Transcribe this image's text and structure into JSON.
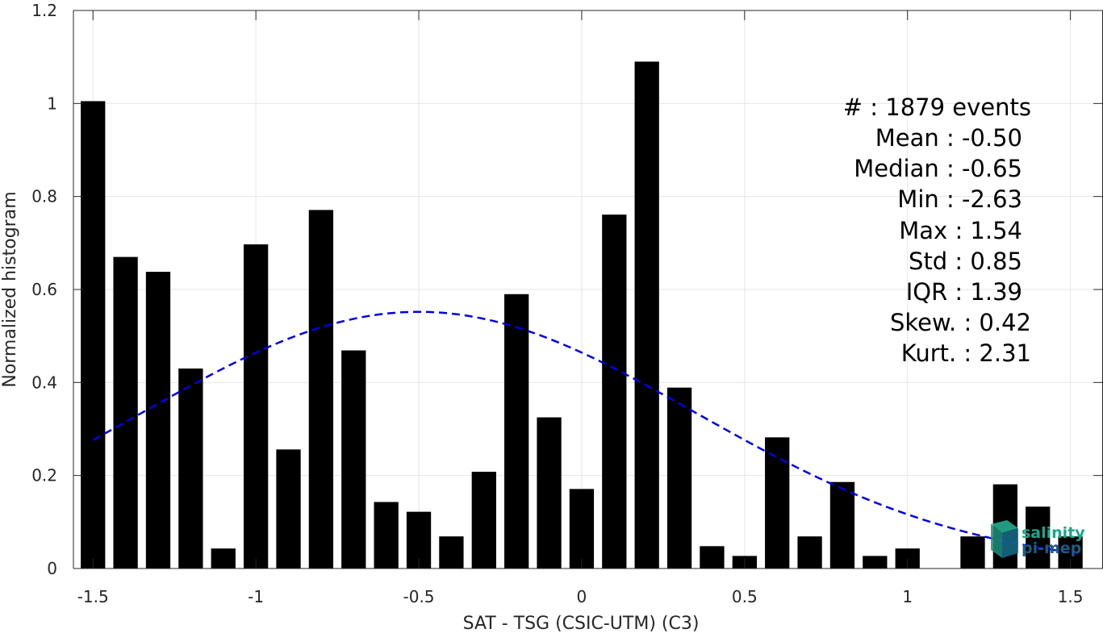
{
  "chart_data": {
    "type": "bar",
    "xlabel": "SAT - TSG (CSIC-UTM) (C3)",
    "ylabel": "Normalized histogram",
    "xlim": [
      -1.56,
      1.6
    ],
    "ylim": [
      0,
      1.2
    ],
    "grid": true,
    "xticks": [
      -1.5,
      -1,
      -0.5,
      0,
      0.5,
      1,
      1.5
    ],
    "xtick_labels": [
      "-1.5",
      "-1",
      "-0.5",
      "0",
      "0.5",
      "1",
      "1.5"
    ],
    "yticks": [
      0,
      0.2,
      0.4,
      0.6,
      0.8,
      1,
      1.2
    ],
    "ytick_labels": [
      "0",
      "0.2",
      "0.4",
      "0.6",
      "0.8",
      "1",
      "1.2"
    ],
    "bar_width": 0.075,
    "bar_color": "#000000",
    "bars": {
      "x": [
        -1.5,
        -1.4,
        -1.3,
        -1.2,
        -1.1,
        -1.0,
        -0.9,
        -0.8,
        -0.7,
        -0.6,
        -0.5,
        -0.4,
        -0.3,
        -0.2,
        -0.1,
        0.0,
        0.1,
        0.2,
        0.3,
        0.4,
        0.5,
        0.6,
        0.7,
        0.8,
        0.9,
        1.0,
        1.1,
        1.2,
        1.3,
        1.4,
        1.5
      ],
      "values": [
        1.005,
        0.67,
        0.638,
        0.43,
        0.043,
        0.697,
        0.256,
        0.771,
        0.469,
        0.143,
        0.122,
        0.069,
        0.208,
        0.59,
        0.325,
        0.171,
        0.761,
        1.09,
        0.389,
        0.048,
        0.027,
        0.282,
        0.069,
        0.186,
        0.027,
        0.043,
        0.0,
        0.069,
        0.181,
        0.133,
        0.069
      ]
    },
    "fit_curve": {
      "type": "normal",
      "mean": -0.5,
      "std": 0.85,
      "peak": 0.552,
      "x_range": [
        -1.5,
        1.52
      ],
      "color": "#0000e6",
      "style": "dashed"
    },
    "stats": {
      "count": "#   : 1879 events",
      "mean": "Mean : -0.50",
      "median": "Median : -0.65",
      "min": "Min : -2.63",
      "max": "Max : 1.54",
      "std": "Std : 0.85",
      "iqr": "IQR : 1.39",
      "skew": "Skew. : 0.42",
      "kurt": "Kurt. : 2.31"
    }
  },
  "logo": {
    "line1": "salinity",
    "line2": "pi-mep",
    "color1": "#1aa68c",
    "color2": "#1a5c80"
  }
}
